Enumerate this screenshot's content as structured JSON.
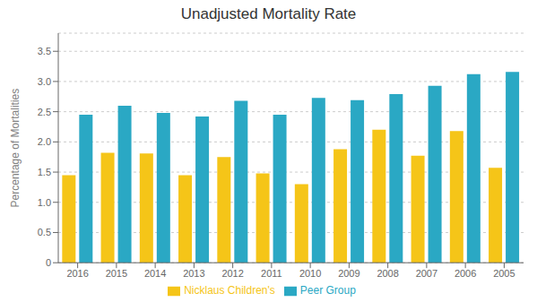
{
  "chart_data": {
    "type": "bar",
    "title": "Unadjusted Mortality Rate",
    "y_label": "Percentage of Mortalities",
    "categories": [
      "2016",
      "2015",
      "2014",
      "2013",
      "2012",
      "2011",
      "2010",
      "2009",
      "2008",
      "2007",
      "2006",
      "2005"
    ],
    "series": [
      {
        "name": "Nicklaus Children's",
        "color": "#F5C518",
        "values": [
          1.45,
          1.82,
          1.81,
          1.45,
          1.75,
          1.48,
          1.3,
          1.88,
          2.2,
          1.77,
          2.18,
          1.57
        ]
      },
      {
        "name": "Peer Group",
        "color": "#2AA8C4",
        "values": [
          2.45,
          2.6,
          2.48,
          2.42,
          2.68,
          2.45,
          2.73,
          2.69,
          2.79,
          2.93,
          3.12,
          3.16
        ]
      }
    ],
    "ylim": [
      0,
      3.8
    ],
    "yticks": [
      0,
      0.5,
      {
        "value": 1,
        "label": "1.0"
      },
      1.5,
      {
        "value": 2,
        "label": "2.0"
      },
      2.5,
      {
        "value": 3,
        "label": "3.0"
      },
      3.5
    ],
    "grid": true,
    "legend": "bottom"
  }
}
